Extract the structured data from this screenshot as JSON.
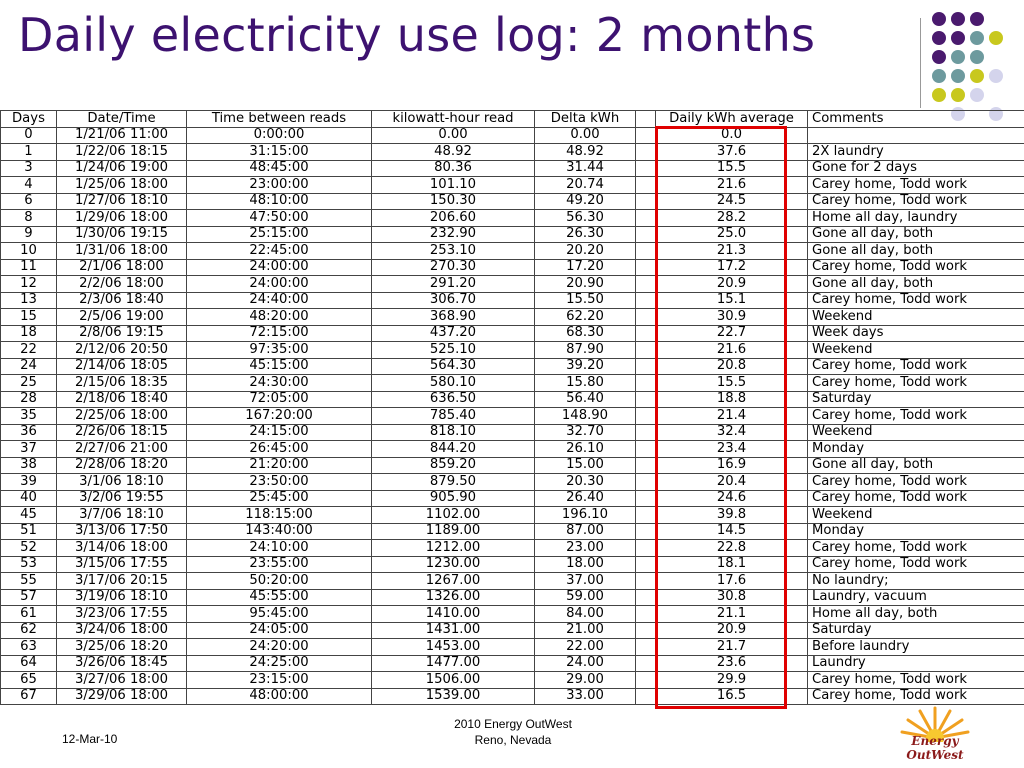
{
  "title": "Daily electricity use log: 2 months",
  "colors": {
    "title": "#3d1270",
    "highlight": "#e00000",
    "dot_purple": "#4a1a6e",
    "dot_teal": "#6d9a9e",
    "dot_yellow": "#c8c81e",
    "dot_lavender": "#d4d4ec"
  },
  "table": {
    "headers": [
      "Days",
      "Date/Time",
      "Time between reads",
      "kilowatt-hour read",
      "Delta kWh",
      "",
      "Daily kWh average",
      "Comments"
    ],
    "rows": [
      [
        "0",
        "1/21/06 11:00",
        "0:00:00",
        "0.00",
        "0.00",
        "",
        "0.0",
        ""
      ],
      [
        "1",
        "1/22/06 18:15",
        "31:15:00",
        "48.92",
        "48.92",
        "",
        "37.6",
        "2X laundry"
      ],
      [
        "3",
        "1/24/06 19:00",
        "48:45:00",
        "80.36",
        "31.44",
        "",
        "15.5",
        "Gone for 2 days"
      ],
      [
        "4",
        "1/25/06 18:00",
        "23:00:00",
        "101.10",
        "20.74",
        "",
        "21.6",
        "Carey home, Todd work"
      ],
      [
        "6",
        "1/27/06 18:10",
        "48:10:00",
        "150.30",
        "49.20",
        "",
        "24.5",
        "Carey home, Todd work"
      ],
      [
        "8",
        "1/29/06 18:00",
        "47:50:00",
        "206.60",
        "56.30",
        "",
        "28.2",
        "Home all day, laundry"
      ],
      [
        "9",
        "1/30/06 19:15",
        "25:15:00",
        "232.90",
        "26.30",
        "",
        "25.0",
        "Gone all day, both"
      ],
      [
        "10",
        "1/31/06 18:00",
        "22:45:00",
        "253.10",
        "20.20",
        "",
        "21.3",
        "Gone all day, both"
      ],
      [
        "11",
        "2/1/06 18:00",
        "24:00:00",
        "270.30",
        "17.20",
        "",
        "17.2",
        "Carey home, Todd work"
      ],
      [
        "12",
        "2/2/06 18:00",
        "24:00:00",
        "291.20",
        "20.90",
        "",
        "20.9",
        "Gone all day, both"
      ],
      [
        "13",
        "2/3/06 18:40",
        "24:40:00",
        "306.70",
        "15.50",
        "",
        "15.1",
        "Carey home, Todd work"
      ],
      [
        "15",
        "2/5/06 19:00",
        "48:20:00",
        "368.90",
        "62.20",
        "",
        "30.9",
        "Weekend"
      ],
      [
        "18",
        "2/8/06 19:15",
        "72:15:00",
        "437.20",
        "68.30",
        "",
        "22.7",
        "Week days"
      ],
      [
        "22",
        "2/12/06 20:50",
        "97:35:00",
        "525.10",
        "87.90",
        "",
        "21.6",
        "Weekend"
      ],
      [
        "24",
        "2/14/06 18:05",
        "45:15:00",
        "564.30",
        "39.20",
        "",
        "20.8",
        "Carey home, Todd work"
      ],
      [
        "25",
        "2/15/06 18:35",
        "24:30:00",
        "580.10",
        "15.80",
        "",
        "15.5",
        "Carey home, Todd work"
      ],
      [
        "28",
        "2/18/06 18:40",
        "72:05:00",
        "636.50",
        "56.40",
        "",
        "18.8",
        "Saturday"
      ],
      [
        "35",
        "2/25/06 18:00",
        "167:20:00",
        "785.40",
        "148.90",
        "",
        "21.4",
        "Carey home, Todd work"
      ],
      [
        "36",
        "2/26/06 18:15",
        "24:15:00",
        "818.10",
        "32.70",
        "",
        "32.4",
        "Weekend"
      ],
      [
        "37",
        "2/27/06 21:00",
        "26:45:00",
        "844.20",
        "26.10",
        "",
        "23.4",
        "Monday"
      ],
      [
        "38",
        "2/28/06 18:20",
        "21:20:00",
        "859.20",
        "15.00",
        "",
        "16.9",
        "Gone all day, both"
      ],
      [
        "39",
        "3/1/06 18:10",
        "23:50:00",
        "879.50",
        "20.30",
        "",
        "20.4",
        "Carey home, Todd work"
      ],
      [
        "40",
        "3/2/06 19:55",
        "25:45:00",
        "905.90",
        "26.40",
        "",
        "24.6",
        "Carey home, Todd work"
      ],
      [
        "45",
        "3/7/06 18:10",
        "118:15:00",
        "1102.00",
        "196.10",
        "",
        "39.8",
        "Weekend"
      ],
      [
        "51",
        "3/13/06 17:50",
        "143:40:00",
        "1189.00",
        "87.00",
        "",
        "14.5",
        "Monday"
      ],
      [
        "52",
        "3/14/06 18:00",
        "24:10:00",
        "1212.00",
        "23.00",
        "",
        "22.8",
        "Carey home, Todd work"
      ],
      [
        "53",
        "3/15/06 17:55",
        "23:55:00",
        "1230.00",
        "18.00",
        "",
        "18.1",
        "Carey home, Todd work"
      ],
      [
        "55",
        "3/17/06 20:15",
        "50:20:00",
        "1267.00",
        "37.00",
        "",
        "17.6",
        "No laundry;"
      ],
      [
        "57",
        "3/19/06 18:10",
        "45:55:00",
        "1326.00",
        "59.00",
        "",
        "30.8",
        "Laundry, vacuum"
      ],
      [
        "61",
        "3/23/06 17:55",
        "95:45:00",
        "1410.00",
        "84.00",
        "",
        "21.1",
        "Home all day, both"
      ],
      [
        "62",
        "3/24/06 18:00",
        "24:05:00",
        "1431.00",
        "21.00",
        "",
        "20.9",
        "Saturday"
      ],
      [
        "63",
        "3/25/06 18:20",
        "24:20:00",
        "1453.00",
        "22.00",
        "",
        "21.7",
        "Before laundry"
      ],
      [
        "64",
        "3/26/06 18:45",
        "24:25:00",
        "1477.00",
        "24.00",
        "",
        "23.6",
        "Laundry"
      ],
      [
        "65",
        "3/27/06 18:00",
        "23:15:00",
        "1506.00",
        "29.00",
        "",
        "29.9",
        "Carey home, Todd work"
      ],
      [
        "67",
        "3/29/06 18:00",
        "48:00:00",
        "1539.00",
        "33.00",
        "",
        "16.5",
        "Carey home, Todd work"
      ]
    ]
  },
  "footer": {
    "date": "12-Mar-10",
    "event_line1": "2010 Energy OutWest",
    "event_line2": "Reno, Nevada",
    "logo_text": "Energy OutWest"
  }
}
